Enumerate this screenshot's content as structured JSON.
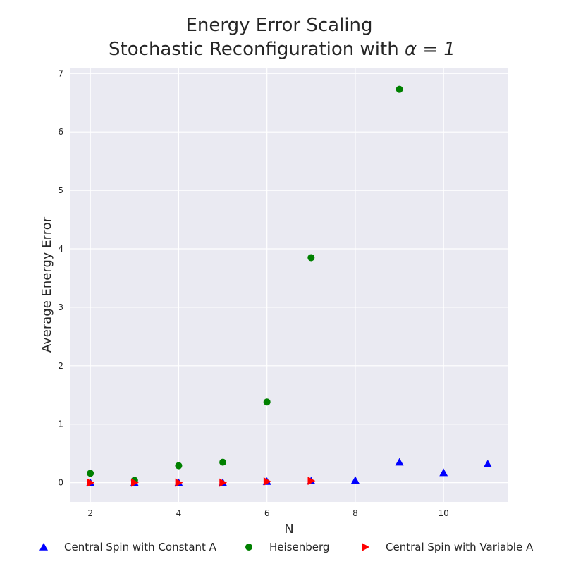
{
  "chart_data": {
    "type": "scatter",
    "title_line1": "Energy Error Scaling",
    "title_line2_prefix": "Stochastic Reconfiguration with ",
    "title_line2_math": "α = 1",
    "xlabel": "N",
    "ylabel": "Average Energy Error",
    "xlim": [
      1.55,
      11.45
    ],
    "ylim": [
      -0.33,
      7.1
    ],
    "xticks": [
      2,
      4,
      6,
      8,
      10
    ],
    "yticks": [
      0,
      1,
      2,
      3,
      4,
      5,
      6,
      7
    ],
    "grid": true,
    "legend_position": "bottom",
    "series": [
      {
        "name": "Central Spin with Constant A",
        "marker": "triangle-up",
        "color": "#0000ff",
        "x": [
          2,
          3,
          4,
          5,
          6,
          7,
          8,
          9,
          10,
          11
        ],
        "y": [
          0.0,
          0.0,
          0.0,
          0.0,
          0.02,
          0.03,
          0.04,
          0.35,
          0.17,
          0.32
        ]
      },
      {
        "name": "Heisenberg",
        "marker": "circle",
        "color": "#008000",
        "x": [
          2,
          3,
          4,
          5,
          6,
          7,
          9
        ],
        "y": [
          0.16,
          0.04,
          0.29,
          0.35,
          1.38,
          3.85,
          6.73
        ]
      },
      {
        "name": "Central Spin with Variable A",
        "marker": "triangle-right",
        "color": "#ff0000",
        "x": [
          2,
          3,
          4,
          5,
          6,
          7
        ],
        "y": [
          0.0,
          0.0,
          0.0,
          0.0,
          0.02,
          0.03
        ]
      }
    ]
  }
}
